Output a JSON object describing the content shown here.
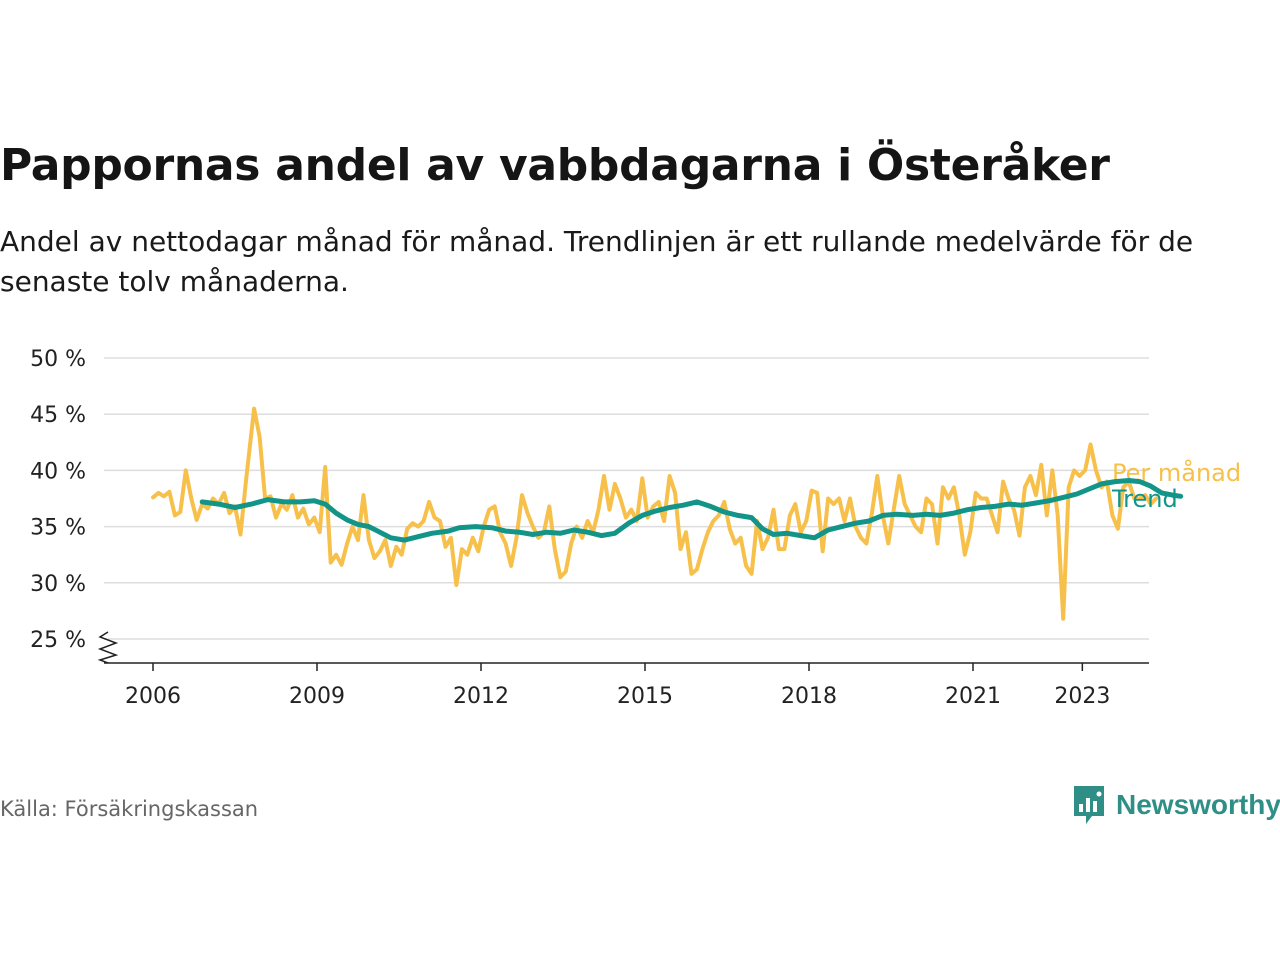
{
  "title": "Pappornas andel av vabbdagarna i Österåker",
  "subtitle": "Andel av nettodagar månad för månad. Trendlinjen är ett rullande medelvärde för de senaste tolv månaderna.",
  "source": "Källa: Försäkringskassan",
  "brand": "Newsworthy",
  "colors": {
    "monthly": "#f7c04a",
    "trend": "#139488",
    "brand": "#2f8f86",
    "grid": "#dddddd"
  },
  "chart_data": {
    "type": "line",
    "title": "Pappornas andel av vabbdagarna i Österåker",
    "xlabel": "",
    "ylabel": "",
    "xlim": [
      2005.5,
      2024.0
    ],
    "ylim": [
      23,
      50
    ],
    "x_ticks": [
      2006,
      2009,
      2012,
      2015,
      2018,
      2021,
      2023
    ],
    "x_tick_labels": [
      "2006",
      "2009",
      "2012",
      "2015",
      "2018",
      "2021",
      "2023"
    ],
    "y_ticks": [
      25,
      30,
      35,
      40,
      45,
      50
    ],
    "y_tick_labels": [
      "25 %",
      "30 %",
      "35 %",
      "40 %",
      "45 %",
      "50 %"
    ],
    "grid": true,
    "legend": "right, at line ends",
    "series": [
      {
        "name": "Per månad",
        "color": "#f7c04a",
        "points": [
          [
            2006.0,
            37.6
          ],
          [
            2006.1,
            38.0
          ],
          [
            2006.2,
            37.7
          ],
          [
            2006.3,
            38.1
          ],
          [
            2006.4,
            36.0
          ],
          [
            2006.5,
            36.3
          ],
          [
            2006.6,
            40.0
          ],
          [
            2006.7,
            37.5
          ],
          [
            2006.8,
            35.6
          ],
          [
            2006.9,
            37.0
          ],
          [
            2007.0,
            36.6
          ],
          [
            2007.1,
            37.5
          ],
          [
            2007.2,
            37.0
          ],
          [
            2007.3,
            38.0
          ],
          [
            2007.4,
            36.2
          ],
          [
            2007.5,
            36.8
          ],
          [
            2007.6,
            34.3
          ],
          [
            2007.7,
            39.0
          ],
          [
            2007.85,
            45.5
          ],
          [
            2007.95,
            43.0
          ],
          [
            2008.05,
            37.5
          ],
          [
            2008.15,
            37.7
          ],
          [
            2008.25,
            35.8
          ],
          [
            2008.35,
            37.0
          ],
          [
            2008.45,
            36.5
          ],
          [
            2008.55,
            37.8
          ],
          [
            2008.65,
            35.8
          ],
          [
            2008.75,
            36.6
          ],
          [
            2008.85,
            35.2
          ],
          [
            2008.95,
            35.8
          ],
          [
            2009.05,
            34.5
          ],
          [
            2009.15,
            40.3
          ],
          [
            2009.25,
            31.8
          ],
          [
            2009.35,
            32.5
          ],
          [
            2009.45,
            31.6
          ],
          [
            2009.55,
            33.5
          ],
          [
            2009.65,
            35.0
          ],
          [
            2009.75,
            33.8
          ],
          [
            2009.85,
            37.8
          ],
          [
            2009.95,
            33.8
          ],
          [
            2010.05,
            32.2
          ],
          [
            2010.15,
            32.8
          ],
          [
            2010.25,
            33.8
          ],
          [
            2010.35,
            31.5
          ],
          [
            2010.45,
            33.2
          ],
          [
            2010.55,
            32.5
          ],
          [
            2010.65,
            34.8
          ],
          [
            2010.75,
            35.3
          ],
          [
            2010.85,
            35.0
          ],
          [
            2010.95,
            35.5
          ],
          [
            2011.05,
            37.2
          ],
          [
            2011.15,
            35.8
          ],
          [
            2011.25,
            35.5
          ],
          [
            2011.35,
            33.2
          ],
          [
            2011.45,
            34.0
          ],
          [
            2011.55,
            29.8
          ],
          [
            2011.65,
            33.0
          ],
          [
            2011.75,
            32.5
          ],
          [
            2011.85,
            34.0
          ],
          [
            2011.95,
            32.8
          ],
          [
            2012.05,
            35.0
          ],
          [
            2012.15,
            36.5
          ],
          [
            2012.25,
            36.8
          ],
          [
            2012.35,
            34.5
          ],
          [
            2012.45,
            33.5
          ],
          [
            2012.55,
            31.5
          ],
          [
            2012.65,
            34.0
          ],
          [
            2012.75,
            37.8
          ],
          [
            2012.85,
            36.2
          ],
          [
            2012.95,
            35.0
          ],
          [
            2013.05,
            34.0
          ],
          [
            2013.15,
            34.5
          ],
          [
            2013.25,
            36.8
          ],
          [
            2013.35,
            33.0
          ],
          [
            2013.45,
            30.5
          ],
          [
            2013.55,
            31.0
          ],
          [
            2013.65,
            33.5
          ],
          [
            2013.75,
            35.0
          ],
          [
            2013.85,
            34.0
          ],
          [
            2013.95,
            35.5
          ],
          [
            2014.05,
            34.5
          ],
          [
            2014.15,
            36.5
          ],
          [
            2014.25,
            39.5
          ],
          [
            2014.35,
            36.5
          ],
          [
            2014.45,
            38.8
          ],
          [
            2014.55,
            37.5
          ],
          [
            2014.65,
            35.8
          ],
          [
            2014.75,
            36.5
          ],
          [
            2014.85,
            35.5
          ],
          [
            2014.95,
            39.3
          ],
          [
            2015.05,
            35.8
          ],
          [
            2015.15,
            36.8
          ],
          [
            2015.25,
            37.2
          ],
          [
            2015.35,
            35.5
          ],
          [
            2015.45,
            39.5
          ],
          [
            2015.55,
            38.0
          ],
          [
            2015.65,
            33.0
          ],
          [
            2015.75,
            34.5
          ],
          [
            2015.85,
            30.8
          ],
          [
            2015.95,
            31.2
          ],
          [
            2016.05,
            33.0
          ],
          [
            2016.15,
            34.5
          ],
          [
            2016.25,
            35.5
          ],
          [
            2016.35,
            36.0
          ],
          [
            2016.45,
            37.2
          ],
          [
            2016.55,
            34.8
          ],
          [
            2016.65,
            33.5
          ],
          [
            2016.75,
            34.0
          ],
          [
            2016.85,
            31.5
          ],
          [
            2016.95,
            30.8
          ],
          [
            2017.05,
            35.5
          ],
          [
            2017.15,
            33.0
          ],
          [
            2017.25,
            34.0
          ],
          [
            2017.35,
            36.5
          ],
          [
            2017.45,
            33.0
          ],
          [
            2017.55,
            33.0
          ],
          [
            2017.65,
            36.0
          ],
          [
            2017.75,
            37.0
          ],
          [
            2017.85,
            34.5
          ],
          [
            2017.95,
            35.5
          ],
          [
            2018.05,
            38.2
          ],
          [
            2018.15,
            38.0
          ],
          [
            2018.25,
            32.8
          ],
          [
            2018.35,
            37.5
          ],
          [
            2018.45,
            37.0
          ],
          [
            2018.55,
            37.5
          ],
          [
            2018.65,
            35.5
          ],
          [
            2018.75,
            37.5
          ],
          [
            2018.85,
            35.0
          ],
          [
            2018.95,
            34.0
          ],
          [
            2019.05,
            33.5
          ],
          [
            2019.15,
            36.2
          ],
          [
            2019.25,
            39.5
          ],
          [
            2019.35,
            36.0
          ],
          [
            2019.45,
            33.5
          ],
          [
            2019.55,
            36.5
          ],
          [
            2019.65,
            39.5
          ],
          [
            2019.75,
            37.0
          ],
          [
            2019.85,
            36.0
          ],
          [
            2019.95,
            35.0
          ],
          [
            2020.05,
            34.5
          ],
          [
            2020.15,
            37.5
          ],
          [
            2020.25,
            37.0
          ],
          [
            2020.35,
            33.5
          ],
          [
            2020.45,
            38.5
          ],
          [
            2020.55,
            37.5
          ],
          [
            2020.65,
            38.5
          ],
          [
            2020.75,
            36.0
          ],
          [
            2020.85,
            32.5
          ],
          [
            2020.95,
            34.5
          ],
          [
            2021.05,
            38.0
          ],
          [
            2021.15,
            37.5
          ],
          [
            2021.25,
            37.5
          ],
          [
            2021.35,
            36.0
          ],
          [
            2021.45,
            34.5
          ],
          [
            2021.55,
            39.0
          ],
          [
            2021.65,
            37.5
          ],
          [
            2021.75,
            36.5
          ],
          [
            2021.85,
            34.2
          ],
          [
            2021.95,
            38.5
          ],
          [
            2022.05,
            39.5
          ],
          [
            2022.15,
            37.8
          ],
          [
            2022.25,
            40.5
          ],
          [
            2022.35,
            36.0
          ],
          [
            2022.45,
            40.0
          ],
          [
            2022.55,
            36.0
          ],
          [
            2022.65,
            26.8
          ],
          [
            2022.75,
            38.5
          ],
          [
            2022.85,
            40.0
          ],
          [
            2022.95,
            39.5
          ],
          [
            2023.05,
            40.0
          ],
          [
            2023.15,
            42.3
          ],
          [
            2023.25,
            40.0
          ],
          [
            2023.35,
            38.5
          ],
          [
            2023.45,
            39.0
          ],
          [
            2023.55,
            36.0
          ],
          [
            2023.65,
            34.8
          ],
          [
            2023.75,
            38.5
          ],
          [
            2023.85,
            39.0
          ],
          [
            2023.95,
            37.5
          ],
          [
            2024.05,
            37.5
          ],
          [
            2024.15,
            37.8
          ],
          [
            2024.25,
            37.0
          ],
          [
            2024.35,
            37.5
          ]
        ]
      },
      {
        "name": "Trend",
        "color": "#139488",
        "points": [
          [
            2006.9,
            37.2
          ],
          [
            2007.2,
            37.0
          ],
          [
            2007.5,
            36.7
          ],
          [
            2007.8,
            37.0
          ],
          [
            2008.1,
            37.4
          ],
          [
            2008.4,
            37.2
          ],
          [
            2008.7,
            37.2
          ],
          [
            2008.95,
            37.3
          ],
          [
            2009.15,
            37.0
          ],
          [
            2009.35,
            36.2
          ],
          [
            2009.55,
            35.6
          ],
          [
            2009.75,
            35.2
          ],
          [
            2009.95,
            35.0
          ],
          [
            2010.15,
            34.5
          ],
          [
            2010.35,
            34.0
          ],
          [
            2010.6,
            33.8
          ],
          [
            2010.85,
            34.1
          ],
          [
            2011.1,
            34.4
          ],
          [
            2011.4,
            34.6
          ],
          [
            2011.6,
            34.9
          ],
          [
            2011.9,
            35.0
          ],
          [
            2012.2,
            34.9
          ],
          [
            2012.45,
            34.6
          ],
          [
            2012.7,
            34.5
          ],
          [
            2012.95,
            34.3
          ],
          [
            2013.2,
            34.5
          ],
          [
            2013.45,
            34.4
          ],
          [
            2013.7,
            34.7
          ],
          [
            2013.95,
            34.5
          ],
          [
            2014.2,
            34.2
          ],
          [
            2014.45,
            34.4
          ],
          [
            2014.7,
            35.3
          ],
          [
            2014.95,
            36.0
          ],
          [
            2015.2,
            36.4
          ],
          [
            2015.45,
            36.7
          ],
          [
            2015.7,
            36.9
          ],
          [
            2015.95,
            37.2
          ],
          [
            2016.2,
            36.8
          ],
          [
            2016.45,
            36.3
          ],
          [
            2016.7,
            36.0
          ],
          [
            2016.95,
            35.8
          ],
          [
            2017.15,
            34.8
          ],
          [
            2017.35,
            34.3
          ],
          [
            2017.6,
            34.4
          ],
          [
            2017.85,
            34.2
          ],
          [
            2018.1,
            34.0
          ],
          [
            2018.35,
            34.7
          ],
          [
            2018.6,
            35.0
          ],
          [
            2018.85,
            35.3
          ],
          [
            2019.1,
            35.5
          ],
          [
            2019.35,
            36.0
          ],
          [
            2019.6,
            36.1
          ],
          [
            2019.9,
            36.0
          ],
          [
            2020.15,
            36.1
          ],
          [
            2020.4,
            36.0
          ],
          [
            2020.65,
            36.2
          ],
          [
            2020.9,
            36.5
          ],
          [
            2021.15,
            36.7
          ],
          [
            2021.4,
            36.8
          ],
          [
            2021.65,
            37.0
          ],
          [
            2021.9,
            36.9
          ],
          [
            2022.15,
            37.1
          ],
          [
            2022.4,
            37.3
          ],
          [
            2022.65,
            37.6
          ],
          [
            2022.9,
            37.9
          ],
          [
            2023.1,
            38.3
          ],
          [
            2023.35,
            38.8
          ],
          [
            2023.6,
            39.0
          ],
          [
            2023.85,
            39.1
          ],
          [
            2024.05,
            39.0
          ],
          [
            2024.25,
            38.6
          ],
          [
            2024.45,
            38.0
          ],
          [
            2024.65,
            37.8
          ],
          [
            2024.8,
            37.7
          ]
        ]
      }
    ]
  }
}
